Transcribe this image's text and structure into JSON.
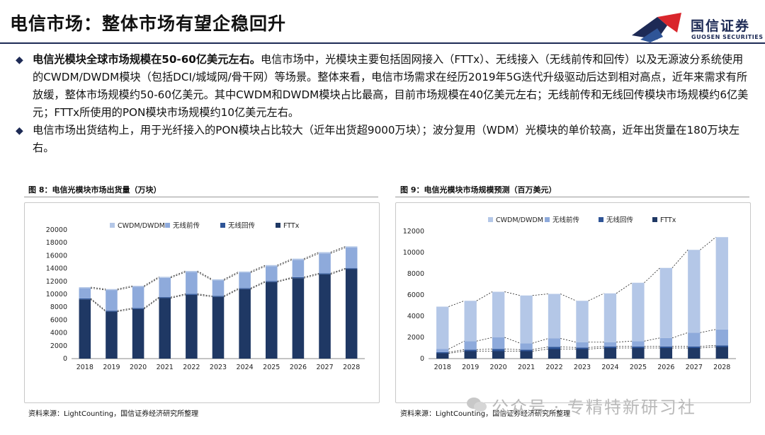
{
  "header": {
    "title": "电信市场：整体市场有望企稳回升",
    "logo_text": "国信证券",
    "logo_sub": "GUOSEN SECURITIES"
  },
  "bullets": [
    {
      "bold": "电信光模块全球市场规模在50-60亿美元左右。",
      "text": "电信市场中，光模块主要包括固网接入（FTTx）、无线接入（无线前传和回传）以及无源波分系统使用的CWDM/DWDM模块（包括DCI/城域网/骨干网）等场景。整体来看，电信市场需求在经历2019年5G迭代升级驱动后达到相对高点，近年来需求有所放缓，整体市场规模约50-60亿美元。其中CWDM和DWDM模块占比最高，目前市场规模在40亿美元左右；无线前传和无线回传模块市场规模约6亿美元；FTTx所使用的PON模块市场规模约10亿美元左右。"
    },
    {
      "bold": "",
      "text": "电信市场出货结构上，用于光纤接入的PON模块占比较大（近年出货超9000万块）；波分复用（WDM）光模块的单价较高，近年出货量在180万块左右。"
    }
  ],
  "figure8": {
    "caption": "图 8：电信光模块市场出货量（万块）",
    "source": "资料来源：LightCounting，国信证券经济研究所整理"
  },
  "figure9": {
    "caption": "图 9：电信光模块市场规模预测（百万美元）",
    "source": "资料来源：LightCounting，国信证券经济研究所整理"
  },
  "watermark": "公众号 · 专精特新研习社",
  "colors": {
    "navy": "#1d2a55",
    "fttx": "#1f3864",
    "backhaul": "#2f5597",
    "fronthaul": "#8eaadb",
    "cwdm": "#b4c7e7",
    "red": "#d9262c"
  },
  "chart_data": [
    {
      "type": "bar",
      "stacked": true,
      "categories": [
        "2018",
        "2019",
        "2020",
        "2021",
        "2022",
        "2023",
        "2024",
        "2025",
        "2026",
        "2027",
        "2028"
      ],
      "ylim": [
        0,
        20000
      ],
      "yticks": [
        "0",
        "2000",
        "4000",
        "6000",
        "8000",
        "10000",
        "12000",
        "14000",
        "16000",
        "18000",
        "20000"
      ],
      "legend_position": "top",
      "series": [
        {
          "name": "CWDM/DWDM",
          "values": [
            150,
            150,
            160,
            160,
            170,
            170,
            180,
            180,
            180,
            190,
            190
          ]
        },
        {
          "name": "无线前传",
          "values": [
            1600,
            3200,
            3300,
            3000,
            3400,
            2400,
            2400,
            2300,
            2700,
            3100,
            3200
          ]
        },
        {
          "name": "无线回传",
          "values": [
            150,
            150,
            150,
            150,
            150,
            150,
            150,
            150,
            150,
            150,
            150
          ]
        },
        {
          "name": "FTTx",
          "values": [
            9200,
            7300,
            7700,
            9400,
            9900,
            9600,
            10800,
            11900,
            12500,
            13100,
            13900
          ]
        }
      ]
    },
    {
      "type": "bar",
      "stacked": true,
      "categories": [
        "2018",
        "2019",
        "2020",
        "2021",
        "2022",
        "2023",
        "2024",
        "2025",
        "2026",
        "2027",
        "2028"
      ],
      "ylim": [
        0,
        12000
      ],
      "yticks": [
        "0",
        "2000",
        "4000",
        "6000",
        "8000",
        "10000",
        "12000"
      ],
      "legend_position": "top",
      "series": [
        {
          "name": "CWDM/DWDM",
          "values": [
            4000,
            3800,
            4300,
            4500,
            4200,
            3900,
            4600,
            5500,
            6600,
            7800,
            8700
          ]
        },
        {
          "name": "无线前传",
          "values": [
            300,
            800,
            1100,
            600,
            800,
            500,
            400,
            500,
            800,
            1300,
            1500
          ]
        },
        {
          "name": "无线回传",
          "values": [
            100,
            150,
            200,
            150,
            200,
            150,
            150,
            150,
            150,
            150,
            150
          ]
        },
        {
          "name": "FTTx",
          "values": [
            500,
            700,
            700,
            700,
            900,
            900,
            1000,
            1000,
            1000,
            1000,
            1100
          ]
        }
      ]
    }
  ]
}
